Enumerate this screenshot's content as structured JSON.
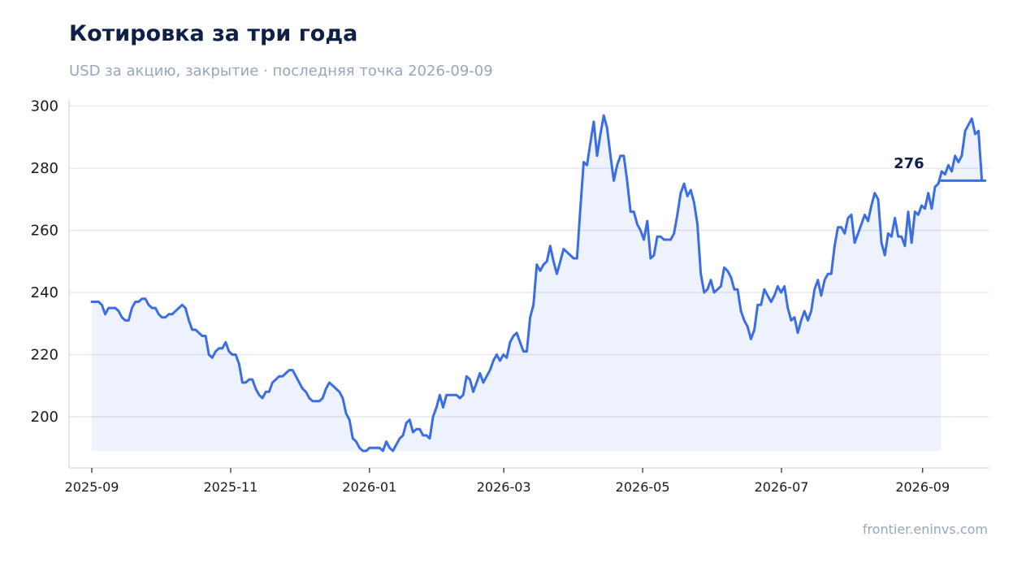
{
  "chart_data": {
    "type": "area",
    "title": "Котировка за три года",
    "subtitle": "USD за акцию, закрытие · последняя точка 2026-09-09",
    "xlabel": "",
    "ylabel": "",
    "x_range": [
      "2025-08-22",
      "2026-09-30"
    ],
    "ylim": [
      183.5,
      302
    ],
    "y_ticks": [
      200,
      220,
      240,
      260,
      280,
      300
    ],
    "x_ticks": [
      {
        "date": "2025-09-01",
        "label": "2025-09"
      },
      {
        "date": "2025-11-01",
        "label": "2025-11"
      },
      {
        "date": "2026-01-01",
        "label": "2026-01"
      },
      {
        "date": "2026-03-01",
        "label": "2026-03"
      },
      {
        "date": "2026-05-01",
        "label": "2026-05"
      },
      {
        "date": "2026-07-01",
        "label": "2026-07"
      },
      {
        "date": "2026-09-01",
        "label": "2026-09"
      }
    ],
    "grid": true,
    "area_baseline": 189,
    "start_date": "2025-09-01",
    "last_point_label": "276",
    "series": [
      {
        "values": [
          237,
          237,
          237,
          236,
          233,
          235,
          235,
          235,
          234,
          232,
          231,
          231,
          235,
          237,
          237,
          238,
          238,
          236,
          235,
          235,
          233,
          232,
          232,
          233,
          233,
          234,
          235,
          236,
          235,
          231,
          228,
          228,
          227,
          226,
          226,
          220,
          219,
          221,
          222,
          222,
          224,
          221,
          220,
          220,
          217,
          211,
          211,
          212,
          212,
          209,
          207,
          206,
          208,
          208,
          211,
          212,
          213,
          213,
          214,
          215,
          215,
          213,
          211,
          209,
          208,
          206,
          205,
          205,
          205,
          206,
          209,
          211,
          210,
          209,
          208,
          206,
          201,
          199,
          193,
          192,
          190,
          189,
          189,
          190,
          190,
          190,
          190,
          189,
          192,
          190,
          189,
          191,
          193,
          194,
          198,
          199,
          195,
          196,
          196,
          194,
          194,
          193,
          200,
          203,
          207,
          203,
          207,
          207,
          207,
          207,
          206,
          207,
          213,
          212,
          208,
          211,
          214,
          211,
          213,
          215,
          218,
          220,
          218,
          220,
          219,
          224,
          226,
          227,
          224,
          221,
          221,
          232,
          236,
          249,
          247,
          249,
          250,
          255,
          250,
          246,
          250,
          254,
          253,
          252,
          251,
          251,
          267,
          282,
          281,
          288,
          295,
          284,
          291,
          297,
          293,
          284,
          276,
          281,
          284,
          284,
          276,
          266,
          266,
          262,
          260,
          257,
          263,
          251,
          252,
          258,
          258,
          257,
          257,
          257,
          259,
          265,
          272,
          275,
          271,
          273,
          269,
          262,
          246,
          240,
          241,
          244,
          240,
          241,
          242,
          248,
          247,
          245,
          241,
          241,
          234,
          231,
          229,
          225,
          228,
          236,
          236,
          241,
          239,
          237,
          239,
          242,
          240,
          242,
          235,
          231,
          232,
          227,
          231,
          234,
          231,
          234,
          241,
          244,
          239,
          244,
          246,
          246,
          255,
          261,
          261,
          259,
          264,
          265,
          256,
          259,
          262,
          265,
          263,
          268,
          272,
          270,
          256,
          252,
          259,
          258,
          264,
          258,
          258,
          255,
          266,
          256,
          266,
          265,
          268,
          267,
          272,
          267,
          274,
          275,
          279,
          278,
          281,
          279,
          284,
          282,
          284,
          292,
          294,
          296,
          291,
          292,
          276,
          276,
          276
        ]
      }
    ]
  },
  "footer": {
    "source": "frontier.eninvs.com"
  }
}
